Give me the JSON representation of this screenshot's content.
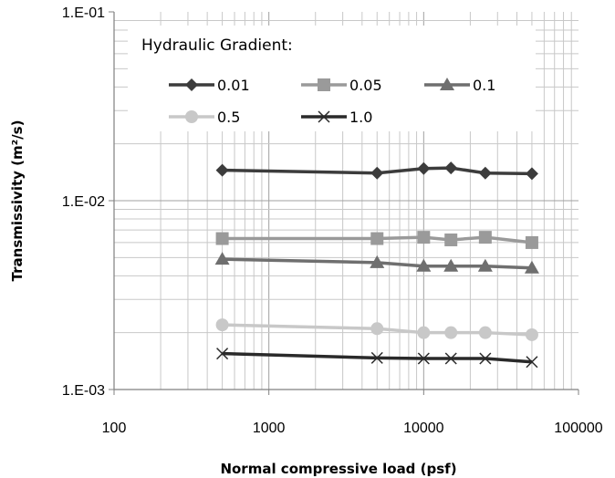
{
  "chart_data": {
    "type": "line",
    "x_scale": "log",
    "y_scale": "log",
    "xlim": [
      100,
      100000
    ],
    "ylim": [
      0.001,
      0.1
    ],
    "x_tick_labels": [
      "100",
      "1000",
      "10000",
      "100000"
    ],
    "y_tick_labels": [
      "1.E-03",
      "1.E-02",
      "1.E-01"
    ],
    "xlabel": "Normal compressive  load (psf)",
    "ylabel": "Transmissivity (m²/s)",
    "grid": "major-and-minor",
    "legend": {
      "title": "Hydraulic Gradient:",
      "placement": "top-inside"
    },
    "series": [
      {
        "name": "0.01",
        "marker": "diamond",
        "color": "#3c3c3c",
        "x": [
          500,
          5000,
          10000,
          15000,
          25000,
          50000
        ],
        "y": [
          0.0145,
          0.014,
          0.0148,
          0.0149,
          0.014,
          0.0139
        ]
      },
      {
        "name": "0.05",
        "marker": "square",
        "color": "#9a9a9a",
        "x": [
          500,
          5000,
          10000,
          15000,
          25000,
          50000
        ],
        "y": [
          0.0063,
          0.0063,
          0.0064,
          0.0062,
          0.0064,
          0.006
        ]
      },
      {
        "name": "0.1",
        "marker": "triangle",
        "color": "#6f6f6f",
        "x": [
          500,
          5000,
          10000,
          15000,
          25000,
          50000
        ],
        "y": [
          0.0049,
          0.0047,
          0.0045,
          0.0045,
          0.0045,
          0.0044
        ]
      },
      {
        "name": "0.5",
        "marker": "circle",
        "color": "#c8c8c8",
        "x": [
          500,
          5000,
          10000,
          15000,
          25000,
          50000
        ],
        "y": [
          0.0022,
          0.0021,
          0.002,
          0.002,
          0.002,
          0.00195
        ]
      },
      {
        "name": "1.0",
        "marker": "x",
        "color": "#2a2a2a",
        "x": [
          500,
          5000,
          10000,
          15000,
          25000,
          50000
        ],
        "y": [
          0.00155,
          0.00147,
          0.00146,
          0.00146,
          0.00146,
          0.0014
        ]
      }
    ]
  }
}
